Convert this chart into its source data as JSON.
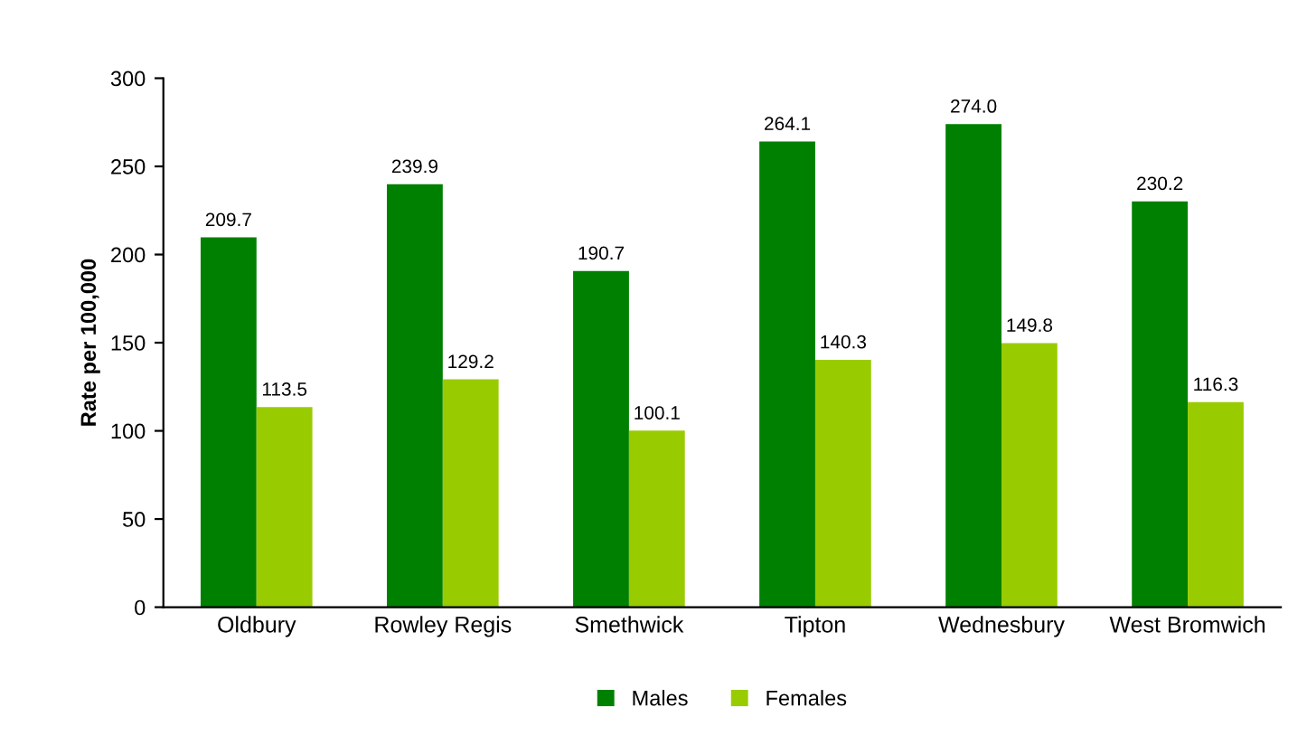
{
  "chart_data": {
    "type": "bar",
    "ylabel": "Rate per 100,000",
    "categories": [
      "Oldbury",
      "Rowley Regis",
      "Smethwick",
      "Tipton",
      "Wednesbury",
      "West Bromwich"
    ],
    "series": [
      {
        "name": "Males",
        "color": "#008000",
        "values": [
          209.7,
          239.9,
          190.7,
          264.1,
          274.0,
          230.2
        ],
        "value_labels": [
          "209.7",
          "239.9",
          "190.7",
          "264.1",
          "274.0",
          "230.2"
        ]
      },
      {
        "name": "Females",
        "color": "#99cc00",
        "values": [
          113.5,
          129.2,
          100.1,
          140.3,
          149.8,
          116.3
        ],
        "value_labels": [
          "113.5",
          "129.2",
          "100.1",
          "140.3",
          "149.8",
          "116.3"
        ]
      }
    ],
    "ylim": [
      0,
      300
    ],
    "yticks": [
      0,
      50,
      100,
      150,
      200,
      250,
      300
    ],
    "grid": false,
    "legend": "bottom"
  }
}
